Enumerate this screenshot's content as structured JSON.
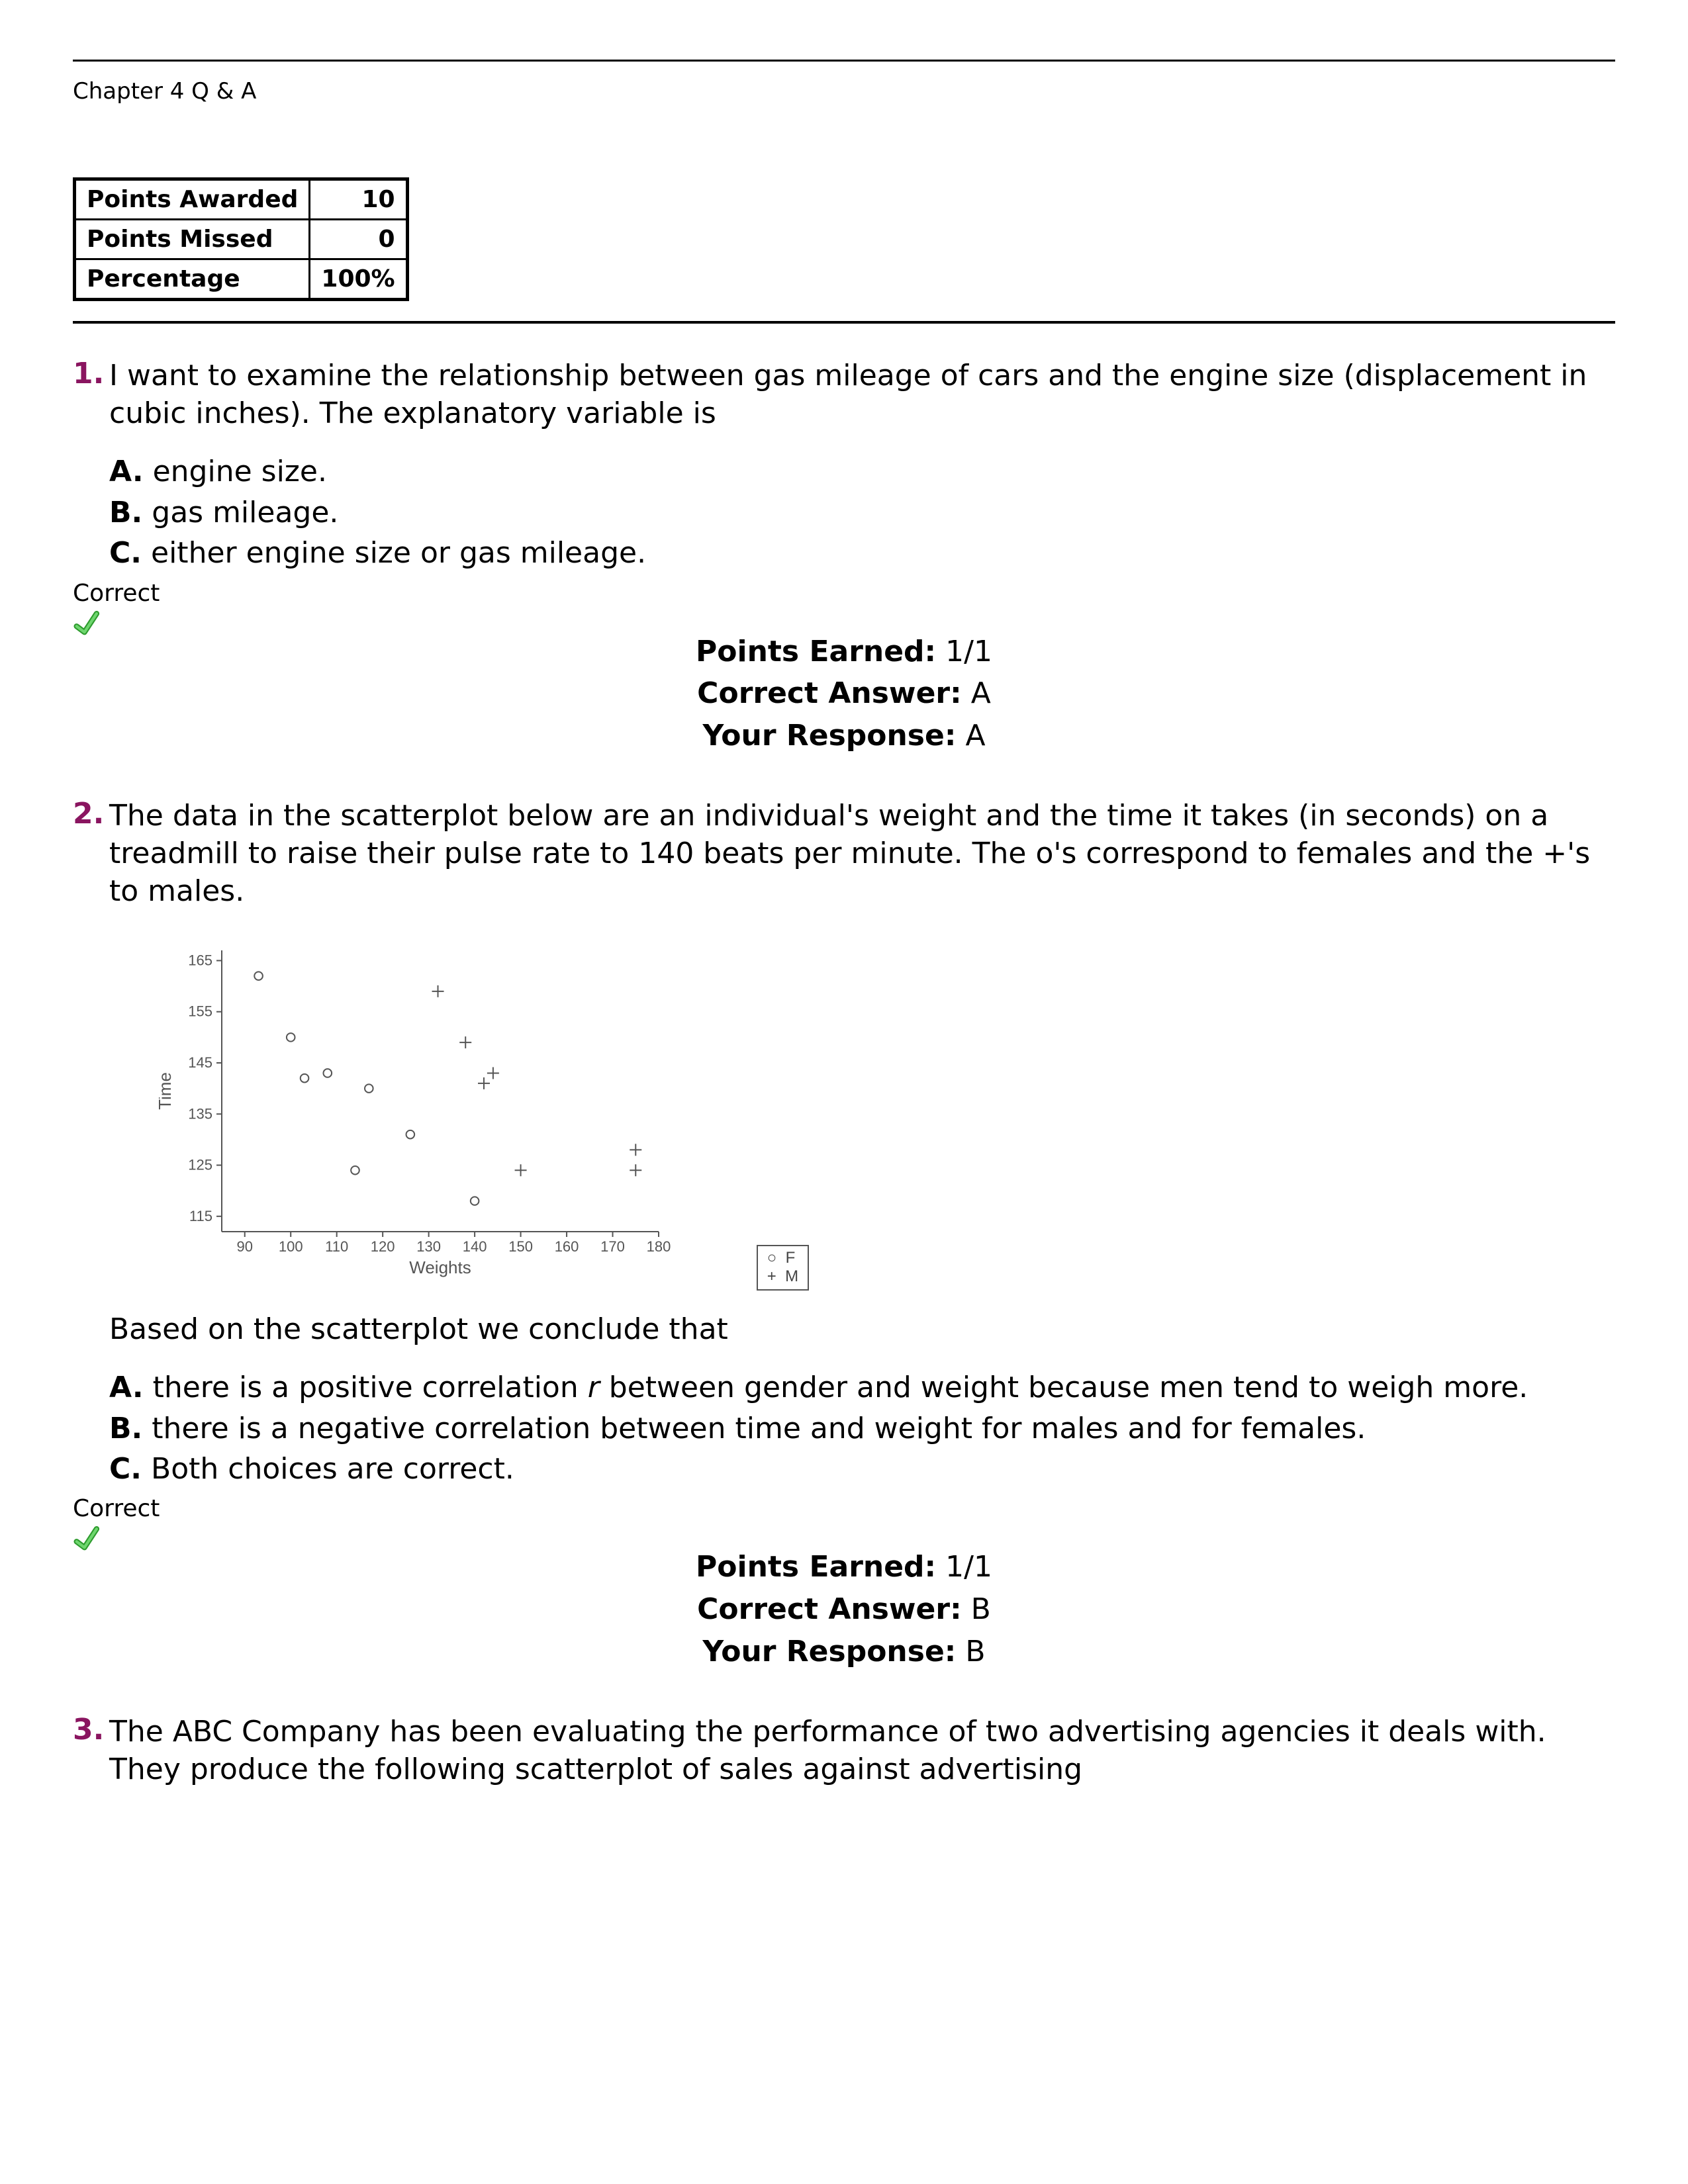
{
  "header": "Chapter 4 Q & A",
  "points_table": {
    "rows": [
      {
        "label": "Points Awarded",
        "value": "10"
      },
      {
        "label": "Points Missed",
        "value": "0"
      },
      {
        "label": "Percentage",
        "value": "100%"
      }
    ]
  },
  "questions": [
    {
      "num": "1.",
      "text": "I want to examine the relationship between gas mileage of cars and the engine size (displacement in cubic inches). The explanatory variable is",
      "choices": [
        {
          "letter": "A.",
          "text": "engine size."
        },
        {
          "letter": "B.",
          "text": "gas mileage."
        },
        {
          "letter": "C.",
          "text": "either engine size or gas mileage."
        }
      ],
      "status": "Correct",
      "points_earned": "1/1",
      "correct_answer": "A",
      "your_response": "A"
    },
    {
      "num": "2.",
      "text": "The data in the scatterplot below are an individual's weight and the time it takes (in seconds) on a treadmill to raise their pulse rate to 140 beats per minute. The o's correspond to females and the +'s to males.",
      "follow": "Based on the scatterplot we conclude that",
      "choices": [
        {
          "letter": "A.",
          "text_html": "there is a positive correlation <span class='italic'>r</span> between gender and weight because men tend to weigh more."
        },
        {
          "letter": "B.",
          "text": "there is a negative correlation between time and weight for males and for females."
        },
        {
          "letter": "C.",
          "text": "Both choices are correct."
        }
      ],
      "status": "Correct",
      "points_earned": "1/1",
      "correct_answer": "B",
      "your_response": "B"
    },
    {
      "num": "3.",
      "text": "The ABC Company has been evaluating the performance of two advertising agencies it deals with. They produce the following scatterplot of sales against advertising"
    }
  ],
  "result_labels": {
    "points_earned": "Points Earned:",
    "correct_answer": "Correct Answer:",
    "your_response": "Your Response:"
  },
  "scatter": {
    "type": "scatter",
    "xlabel": "Weights",
    "ylabel": "Time",
    "xlim": [
      85,
      180
    ],
    "ylim": [
      112,
      167
    ],
    "xticks": [
      90,
      100,
      110,
      120,
      130,
      140,
      150,
      160,
      170,
      180
    ],
    "yticks": [
      115,
      125,
      135,
      145,
      155,
      165
    ],
    "axis_color": "#555555",
    "tick_font_size": 22,
    "label_font_size": 26,
    "marker_color": "#555555",
    "marker_size": 9,
    "series": [
      {
        "name": "F",
        "marker": "circle",
        "points": [
          {
            "x": 93,
            "y": 162
          },
          {
            "x": 100,
            "y": 150
          },
          {
            "x": 108,
            "y": 143
          },
          {
            "x": 103,
            "y": 142
          },
          {
            "x": 117,
            "y": 140
          },
          {
            "x": 126,
            "y": 131
          },
          {
            "x": 114,
            "y": 124
          },
          {
            "x": 140,
            "y": 118
          }
        ]
      },
      {
        "name": "M",
        "marker": "plus",
        "points": [
          {
            "x": 132,
            "y": 159
          },
          {
            "x": 138,
            "y": 149
          },
          {
            "x": 144,
            "y": 143
          },
          {
            "x": 142,
            "y": 141
          },
          {
            "x": 150,
            "y": 124
          },
          {
            "x": 175,
            "y": 128
          },
          {
            "x": 175,
            "y": 124
          }
        ]
      }
    ],
    "legend": [
      {
        "symbol": "○",
        "label": "F"
      },
      {
        "symbol": "+",
        "label": "M"
      }
    ]
  }
}
